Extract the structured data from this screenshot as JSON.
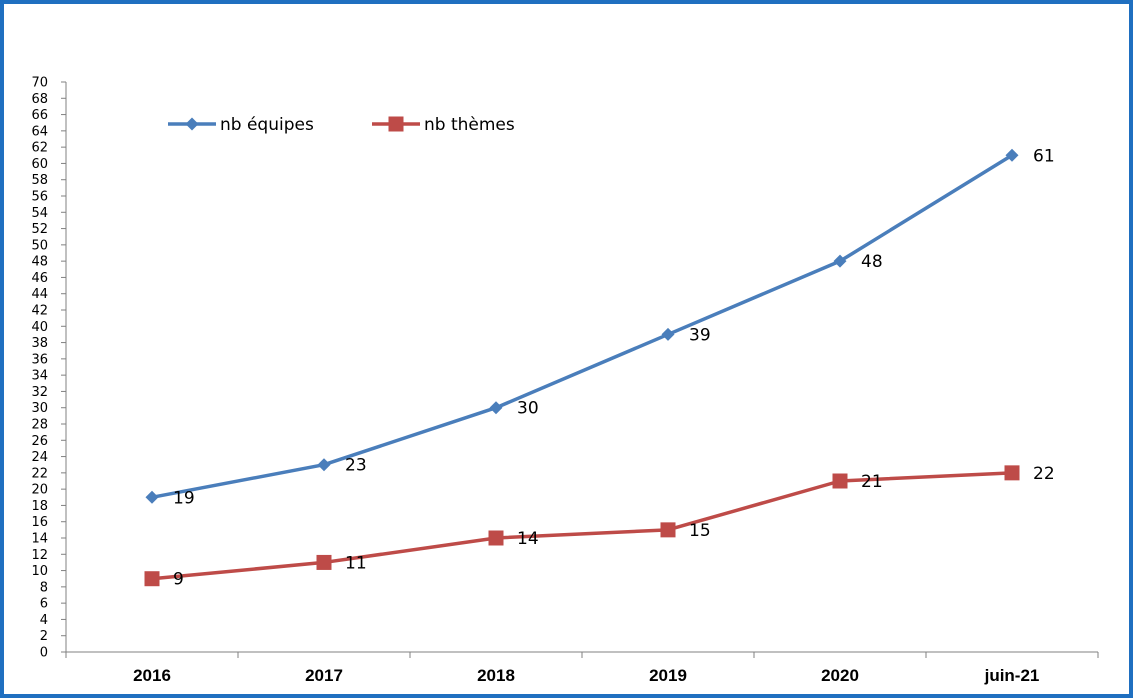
{
  "chart_data": {
    "type": "line",
    "categories": [
      "2016",
      "2017",
      "2018",
      "2019",
      "2020",
      "juin-21"
    ],
    "series": [
      {
        "name": "nb équipes",
        "values": [
          19,
          23,
          30,
          39,
          48,
          61
        ],
        "color": "#4a7ebb",
        "marker": "diamond"
      },
      {
        "name": "nb thèmes",
        "values": [
          9,
          11,
          14,
          15,
          21,
          22
        ],
        "color": "#be4b48",
        "marker": "square"
      }
    ],
    "ylim": [
      0,
      70
    ],
    "ytick_step": 2,
    "legend_position": "top-left",
    "grid": false,
    "data_labels": true,
    "title": "",
    "xlabel": "",
    "ylabel": ""
  }
}
